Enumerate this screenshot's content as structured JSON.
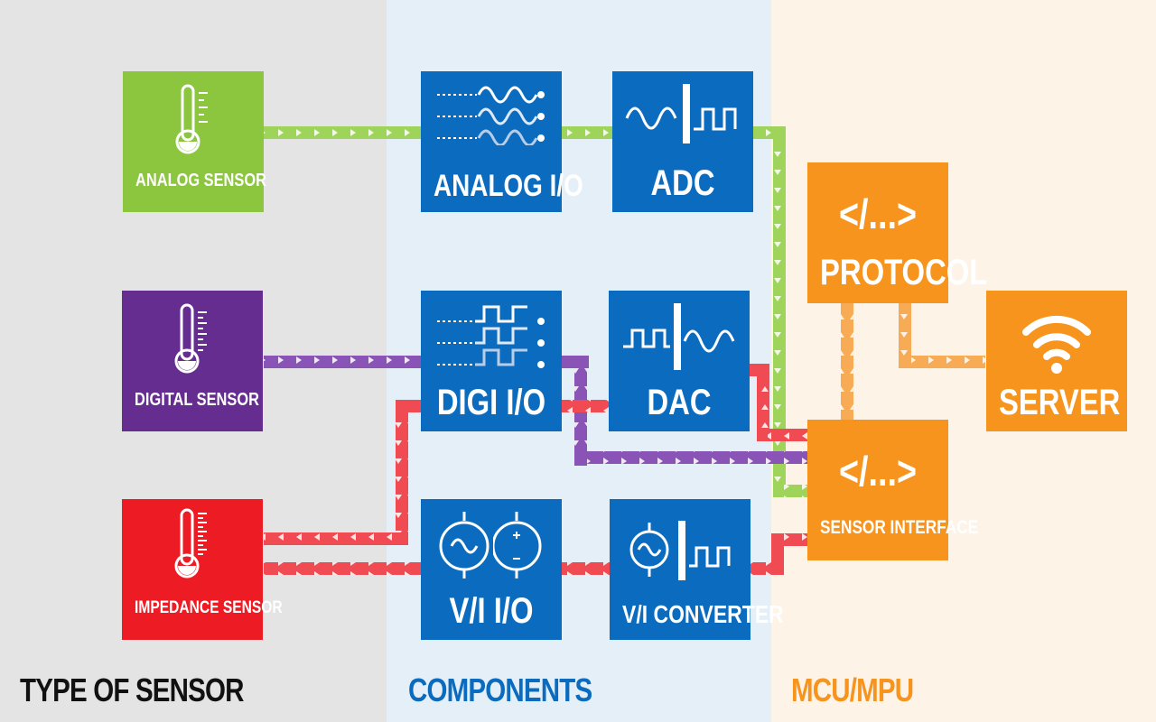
{
  "columns": {
    "sensor": "TYPE OF SENSOR",
    "components": "COMPONENTS",
    "mcu": "MCU/MPU"
  },
  "sensors": {
    "analog": "ANALOG SENSOR",
    "digital": "DIGITAL SENSOR",
    "impedance": "IMPEDANCE SENSOR"
  },
  "components": {
    "analog_io": "ANALOG I/O",
    "adc": "ADC",
    "digi_io": "DIGI I/O",
    "dac": "DAC",
    "vi_io": "V/I  I/O",
    "vi_converter": "V/I CONVERTER"
  },
  "mcu": {
    "protocol": "PROTOCOL",
    "protocol_glyph": "</...>",
    "sensor_interface": "SENSOR INTERFACE",
    "sensor_interface_glyph": "</...>",
    "server": "SERVER"
  },
  "colors": {
    "analog": "#8cc63f",
    "digital": "#662d91",
    "impedance": "#ed1c24",
    "component": "#0b6cbf",
    "mcu": "#f7941d",
    "sensor_col_bg": "#e4e4e4",
    "component_col_bg": "#e4eff8",
    "mcu_col_bg": "#fdf3e7"
  },
  "icons": [
    "thermometer-icon",
    "analog-waves-icon",
    "adc-icon",
    "digital-waves-icon",
    "dac-icon",
    "ac-source-icon",
    "dc-source-icon",
    "vi-converter-icon",
    "code-icon",
    "wifi-icon"
  ]
}
